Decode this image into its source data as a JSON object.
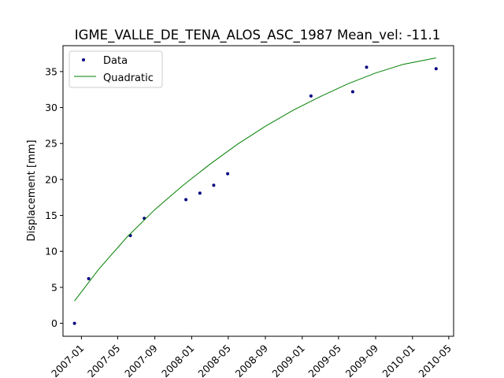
{
  "chart_data": {
    "type": "scatter",
    "title": "IGME_VALLE_DE_TENA_ALOS_ASC_1987     Mean_vel: -11.1",
    "xlabel": "",
    "ylabel": "Displacement [mm]",
    "xlim": [
      "2006-11-01",
      "2010-05-17"
    ],
    "ylim": [
      -1.8,
      38.6
    ],
    "x_ticks": [
      "2007-01",
      "2007-05",
      "2007-09",
      "2008-01",
      "2008-05",
      "2008-09",
      "2009-01",
      "2009-05",
      "2009-09",
      "2010-01",
      "2010-05"
    ],
    "x_tick_dates": [
      "2007-01-01",
      "2007-05-01",
      "2007-09-01",
      "2008-01-01",
      "2008-05-01",
      "2008-09-01",
      "2009-01-01",
      "2009-05-01",
      "2009-09-01",
      "2010-01-01",
      "2010-05-01"
    ],
    "y_ticks": [
      0,
      5,
      10,
      15,
      20,
      25,
      30,
      35
    ],
    "grid": false,
    "legend_position": "top-left",
    "series": [
      {
        "name": "Data",
        "kind": "points",
        "color": "#000080",
        "x": [
          "2006-12-09",
          "2007-01-25",
          "2007-06-12",
          "2007-07-28",
          "2007-12-13",
          "2008-01-28",
          "2008-03-14",
          "2008-04-29",
          "2009-01-30",
          "2009-06-17",
          "2009-08-02",
          "2010-03-20"
        ],
        "y": [
          0.0,
          6.2,
          12.2,
          14.6,
          17.2,
          18.1,
          19.2,
          20.8,
          31.6,
          32.2,
          35.6,
          35.4
        ]
      },
      {
        "name": "Quadratic",
        "kind": "line",
        "color": "#008000",
        "x": [
          "2006-12-09",
          "2007-03-01",
          "2007-06-01",
          "2007-09-01",
          "2007-12-01",
          "2008-03-01",
          "2008-06-01",
          "2008-09-01",
          "2008-12-01",
          "2009-03-01",
          "2009-06-01",
          "2009-09-01",
          "2009-12-01",
          "2010-03-20"
        ],
        "y": [
          3.1,
          7.6,
          12.0,
          15.8,
          19.1,
          22.1,
          24.9,
          27.4,
          29.6,
          31.5,
          33.3,
          34.8,
          36.0,
          36.9
        ]
      }
    ]
  }
}
